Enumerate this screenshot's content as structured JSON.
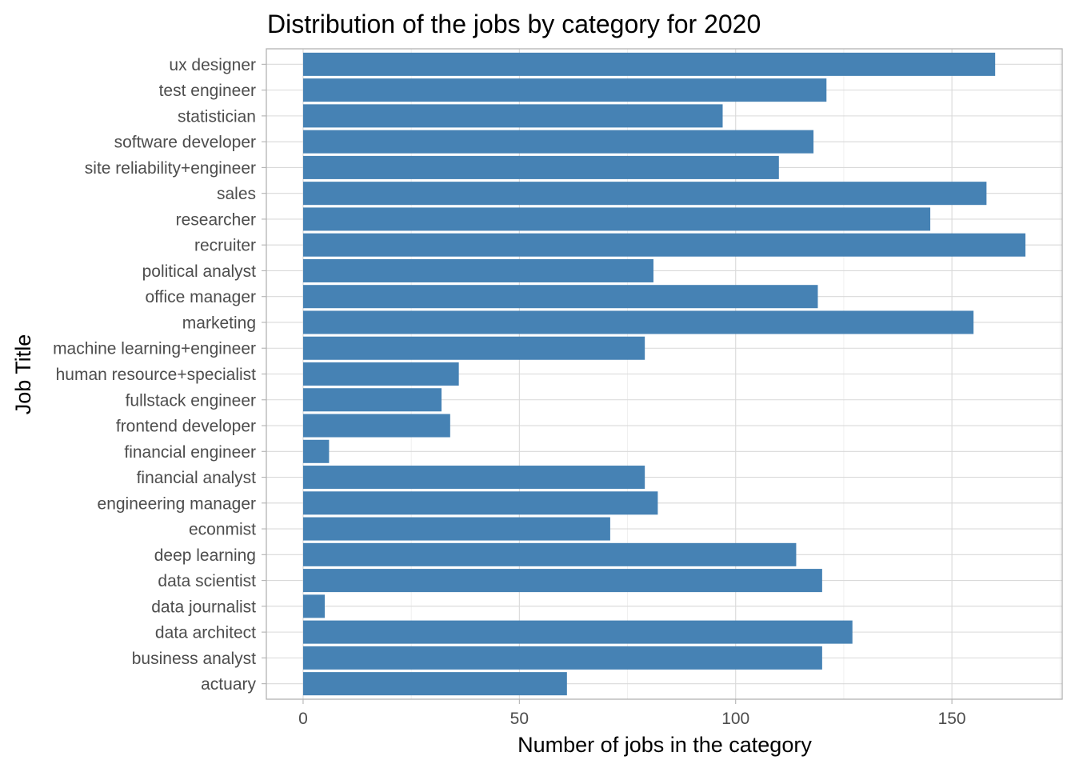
{
  "chart_data": {
    "type": "bar",
    "orientation": "horizontal",
    "title": "Distribution of the jobs by category for 2020",
    "xlabel": "Number of jobs in the category",
    "ylabel": "Job Title",
    "xlim": [
      -8.5,
      175.5
    ],
    "xticks": [
      0,
      50,
      100,
      150
    ],
    "grid": true,
    "bar_color": "#4682b4",
    "categories": [
      "ux designer",
      "test engineer",
      "statistician",
      "software developer",
      "site reliability+engineer",
      "sales",
      "researcher",
      "recruiter",
      "political analyst",
      "office manager",
      "marketing",
      "machine learning+engineer",
      "human resource+specialist",
      "fullstack engineer",
      "frontend developer",
      "financial engineer",
      "financial analyst",
      "engineering manager",
      "econmist",
      "deep learning",
      "data scientist",
      "data journalist",
      "data architect",
      "business analyst",
      "actuary"
    ],
    "values": [
      160,
      121,
      97,
      118,
      110,
      158,
      145,
      167,
      81,
      119,
      155,
      79,
      36,
      32,
      34,
      6,
      79,
      82,
      71,
      114,
      120,
      5,
      127,
      120,
      61
    ]
  }
}
